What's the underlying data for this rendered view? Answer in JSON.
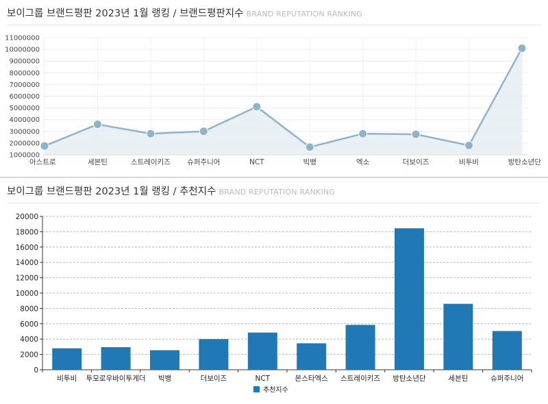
{
  "panels": [
    {
      "title": "보이그룹 브랜드평판 2023년 1월 랭킹 / 브랜드평판지수",
      "subtitle": "BRAND REPUTATION RANKING"
    },
    {
      "title": "보이그룹 브랜드평판 2023년 1월 랭킹 / 추천지수",
      "subtitle": "BRAND REPUTATION RANKING"
    }
  ],
  "colors": {
    "line": "#8fb3c8",
    "area": "#e6eef3",
    "bar": "#2079b4"
  },
  "chart_data": [
    {
      "type": "area",
      "categories": [
        "아스트로",
        "세븐틴",
        "스트레이키즈",
        "슈퍼주니어",
        "NCT",
        "빅뱅",
        "엑소",
        "더보이즈",
        "비투비",
        "방탄소년단"
      ],
      "series": [
        {
          "values": [
            1750000,
            3600000,
            2800000,
            3000000,
            5100000,
            1650000,
            2800000,
            2750000,
            1800000,
            10100000
          ]
        }
      ],
      "yticks": [
        "1000000",
        "2000000",
        "3000000",
        "4000000",
        "5000000",
        "6000000",
        "7000000",
        "8000000",
        "9000000",
        "10000000",
        "11000000"
      ],
      "ylim": [
        1000000,
        11000000
      ],
      "grid": true
    },
    {
      "type": "bar",
      "categories": [
        "비투비",
        "투모로우바이투게더",
        "빅뱅",
        "더보이즈",
        "NCT",
        "몬스타엑스",
        "스트레이키즈",
        "방탄소년단",
        "세븐틴",
        "슈퍼주니어"
      ],
      "series": [
        {
          "name": "추천지수",
          "values": [
            2800,
            2950,
            2550,
            4000,
            4850,
            3450,
            5850,
            18450,
            8600,
            5050
          ]
        }
      ],
      "yticks": [
        "0",
        "2000",
        "4000",
        "6000",
        "8000",
        "10000",
        "12000",
        "14000",
        "16000",
        "18000",
        "20000"
      ],
      "ylim": [
        0,
        20000
      ],
      "grid": true,
      "legend": "bottom"
    }
  ]
}
